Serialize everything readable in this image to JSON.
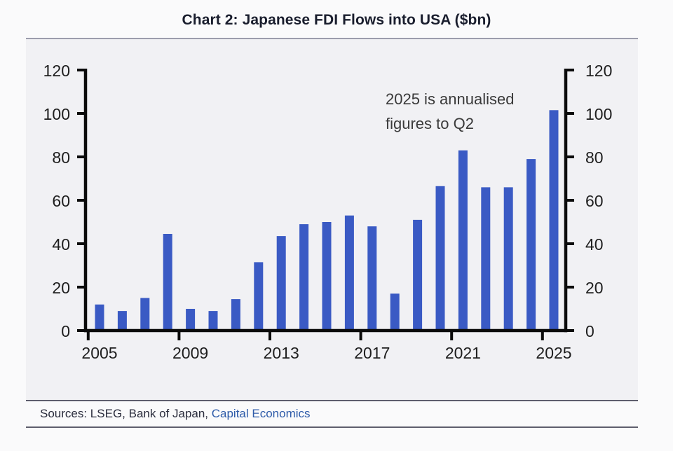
{
  "page": {
    "title": "Chart 2: Japanese FDI Flows into USA ($bn)"
  },
  "chart_data": {
    "type": "bar",
    "title": "Chart 2: Japanese FDI Flows into USA ($bn)",
    "categories": [
      2005,
      2006,
      2007,
      2008,
      2009,
      2010,
      2011,
      2012,
      2013,
      2014,
      2015,
      2016,
      2017,
      2018,
      2019,
      2020,
      2021,
      2022,
      2023,
      2024,
      2025
    ],
    "values": [
      12,
      9,
      15,
      44.5,
      10,
      9,
      14.5,
      31.5,
      43.5,
      49,
      50,
      53,
      48,
      17,
      51,
      66.5,
      83,
      66,
      66,
      79,
      101.5
    ],
    "series_name": "Japanese FDI Flows into USA ($bn)",
    "xlabel": "",
    "ylabel": "",
    "ylim": [
      0,
      120
    ],
    "y_ticks": [
      0,
      20,
      40,
      60,
      80,
      100,
      120
    ],
    "x_tick_labels": [
      "2005",
      "2009",
      "2013",
      "2017",
      "2021",
      "2025"
    ],
    "dual_y_axis": true,
    "grid": false,
    "legend": "none",
    "annotation_lines": [
      "2025 is annualised",
      "figures to Q2"
    ],
    "bar_color": "#3A5AC4",
    "axis_color": "#0B0B0B",
    "tick_label_color": "#1E1E1E",
    "annotation_color": "#3A3A3A"
  },
  "footer": {
    "sources_prefix": "Sources: LSEG, Bank of Japan, ",
    "sources_link": "Capital Economics"
  }
}
